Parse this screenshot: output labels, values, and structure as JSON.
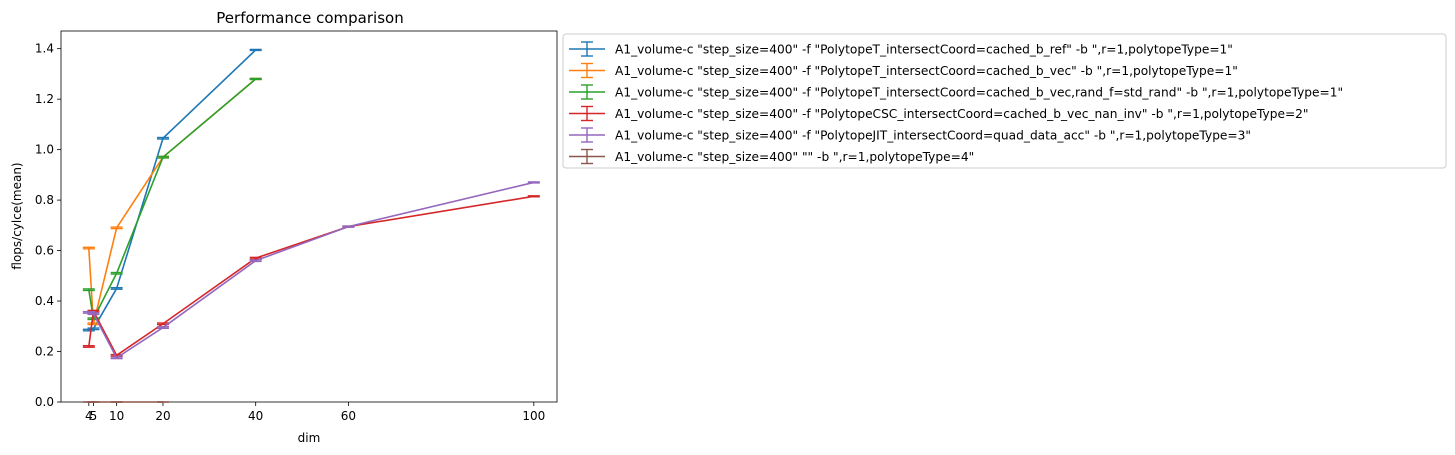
{
  "chart_data": {
    "type": "line",
    "title": "Performance comparison",
    "xlabel": "dim",
    "ylabel": "flops/cylce(mean)",
    "xlim": [
      -2,
      105
    ],
    "ylim": [
      0,
      1.47
    ],
    "x_ticks": [
      4,
      5,
      10,
      20,
      40,
      60,
      100
    ],
    "y_ticks": [
      0.0,
      0.2,
      0.4,
      0.6,
      0.8,
      1.0,
      1.2,
      1.4
    ],
    "y_tick_labels": [
      "0.0",
      "0.2",
      "0.4",
      "0.6",
      "0.8",
      "1.0",
      "1.2",
      "1.4"
    ],
    "grid": false,
    "error_bars": true,
    "legend_position": "outside-upper-right",
    "series": [
      {
        "name": "A1_volume-c \"step_size=400\" -f \"PolytopeT_intersectCoord=cached_b_ref\" -b \",r=1,polytopeType=1\"",
        "color": "#1f77b4",
        "x": [
          4,
          5,
          10,
          20,
          40
        ],
        "y": [
          0.285,
          0.29,
          0.45,
          1.045,
          1.395
        ],
        "err": [
          0.003,
          0.003,
          0.003,
          0.003,
          0.002
        ]
      },
      {
        "name": "A1_volume-c \"step_size=400\" -f \"PolytopeT_intersectCoord=cached_b_vec\" -b \",r=1,polytopeType=1\"",
        "color": "#ff7f0e",
        "x": [
          4,
          5,
          10,
          20,
          40
        ],
        "y": [
          0.61,
          0.31,
          0.69,
          0.97,
          1.28
        ],
        "err": [
          0.003,
          0.003,
          0.003,
          0.003,
          0.002
        ]
      },
      {
        "name": "A1_volume-c \"step_size=400\" -f \"PolytopeT_intersectCoord=cached_b_vec,rand_f=std_rand\" -b \",r=1,polytopeType=1\"",
        "color": "#2ca02c",
        "x": [
          4,
          5,
          10,
          20,
          40
        ],
        "y": [
          0.445,
          0.33,
          0.51,
          0.97,
          1.28
        ],
        "err": [
          0.003,
          0.003,
          0.003,
          0.003,
          0.002
        ]
      },
      {
        "name": "A1_volume-c \"step_size=400\" -f \"PolytopeCSC_intersectCoord=cached_b_vec_nan_inv\" -b \",r=1,polytopeType=2\"",
        "color": "#d62728",
        "x": [
          4,
          5,
          10,
          20,
          40,
          60,
          100
        ],
        "y": [
          0.22,
          0.36,
          0.185,
          0.31,
          0.57,
          0.695,
          0.815
        ],
        "err": [
          0.003,
          0.003,
          0.003,
          0.003,
          0.003,
          0.002,
          0.002
        ]
      },
      {
        "name": "A1_volume-c \"step_size=400\" -f \"PolytopeJIT_intersectCoord=quad_data_acc\" -b \",r=1,polytopeType=3\"",
        "color": "#9467bd",
        "x": [
          4,
          5,
          10,
          20,
          40,
          60,
          100
        ],
        "y": [
          0.355,
          0.35,
          0.175,
          0.295,
          0.56,
          0.695,
          0.87
        ],
        "err": [
          0.003,
          0.003,
          0.003,
          0.003,
          0.003,
          0.002,
          0.002
        ]
      },
      {
        "name": "A1_volume-c \"step_size=400\"  \"\" -b \",r=1,polytopeType=4\"",
        "color": "#8c564b",
        "x": [
          4,
          5,
          10,
          20
        ],
        "y": [
          0.0,
          0.0,
          0.0,
          0.0
        ],
        "err": [
          0.0,
          0.0,
          0.0,
          0.0
        ]
      }
    ]
  }
}
